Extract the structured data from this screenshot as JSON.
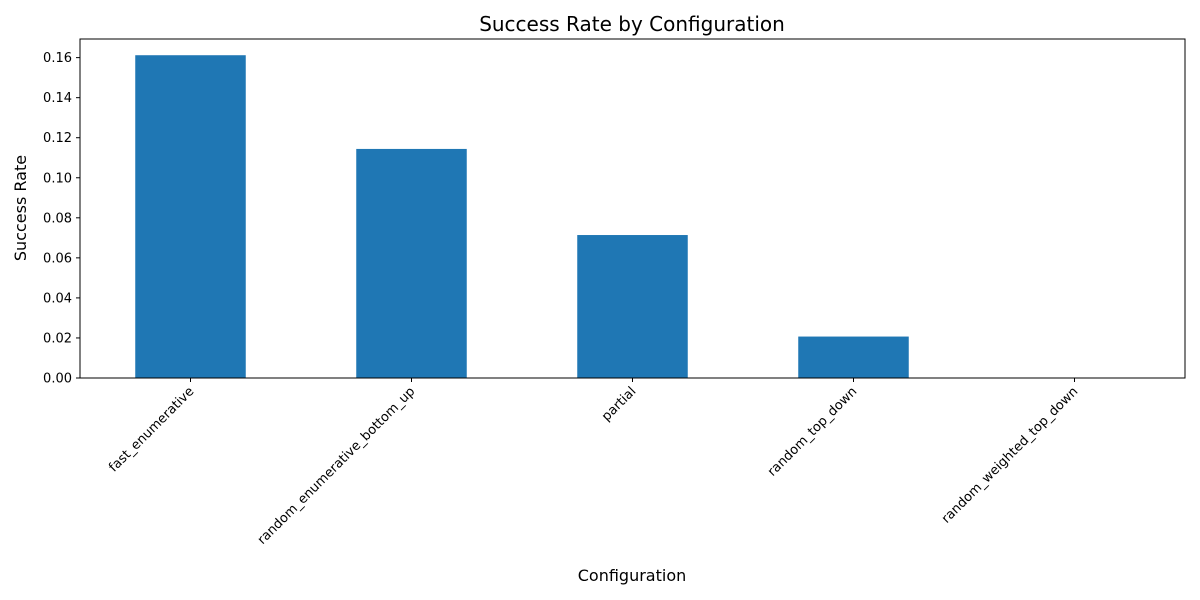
{
  "chart_data": {
    "type": "bar",
    "title": "Success Rate by Configuration",
    "xlabel": "Configuration",
    "ylabel": "Success Rate",
    "categories": [
      "fast_enumerative",
      "random_enumerative_bottom_up",
      "partial",
      "random_top_down",
      "random_weighted_top_down"
    ],
    "values": [
      0.1612,
      0.1144,
      0.0714,
      0.0207,
      0.0
    ],
    "ylim": [
      0,
      0.1693
    ],
    "yticks": [
      0.0,
      0.02,
      0.04,
      0.06,
      0.08,
      0.1,
      0.12,
      0.14,
      0.16
    ],
    "ytick_labels": [
      "0.00",
      "0.02",
      "0.04",
      "0.06",
      "0.08",
      "0.10",
      "0.12",
      "0.14",
      "0.16"
    ],
    "bar_color": "#1f77b4",
    "grid": false,
    "legend": false
  }
}
